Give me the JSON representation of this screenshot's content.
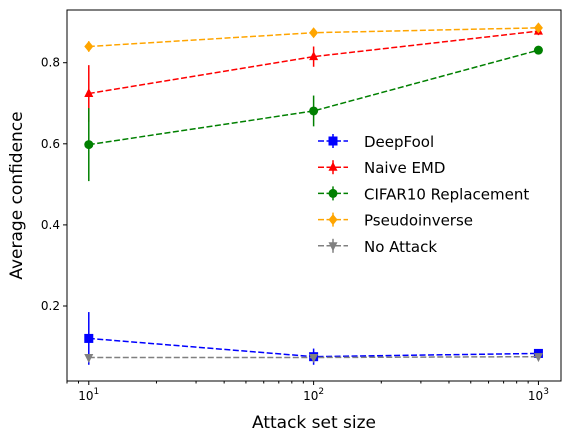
{
  "chart_data": {
    "type": "line",
    "title": "",
    "xlabel": "Attack set size",
    "ylabel": "Average confidence",
    "xscale": "log",
    "x": [
      10,
      100,
      1000
    ],
    "xlim": [
      8,
      1260
    ],
    "ylim": [
      0.015,
      0.93
    ],
    "xticks": [
      {
        "value": 10,
        "base": "10",
        "exp": "1"
      },
      {
        "value": 100,
        "base": "10",
        "exp": "2"
      },
      {
        "value": 1000,
        "base": "10",
        "exp": "3"
      }
    ],
    "yticks": [
      {
        "value": 0.2,
        "label": "0.2"
      },
      {
        "value": 0.4,
        "label": "0.4"
      },
      {
        "value": 0.6,
        "label": "0.6"
      },
      {
        "value": 0.8,
        "label": "0.8"
      }
    ],
    "grid": false,
    "legend_position": "center-right",
    "series": [
      {
        "name": "DeepFool",
        "color": "#0000ff",
        "marker": "square",
        "values": [
          0.12,
          0.075,
          0.083
        ],
        "errors": [
          0.065,
          0.02,
          0.008
        ]
      },
      {
        "name": "Naive EMD",
        "color": "#ff0000",
        "marker": "triangle-up",
        "values": [
          0.724,
          0.815,
          0.878
        ],
        "errors": [
          0.07,
          0.025,
          0.01
        ]
      },
      {
        "name": "CIFAR10 Replacement",
        "color": "#008000",
        "marker": "circle",
        "values": [
          0.598,
          0.681,
          0.831
        ],
        "errors": [
          0.09,
          0.038,
          0.008
        ]
      },
      {
        "name": "Pseudoinverse",
        "color": "#ffa500",
        "marker": "diamond",
        "values": [
          0.84,
          0.874,
          0.886
        ],
        "errors": [
          0.013,
          0.01,
          0.008
        ]
      },
      {
        "name": "No Attack",
        "color": "#808080",
        "marker": "triangle-down",
        "values": [
          0.073,
          0.073,
          0.075
        ],
        "errors": [
          0,
          0,
          0
        ]
      }
    ]
  }
}
